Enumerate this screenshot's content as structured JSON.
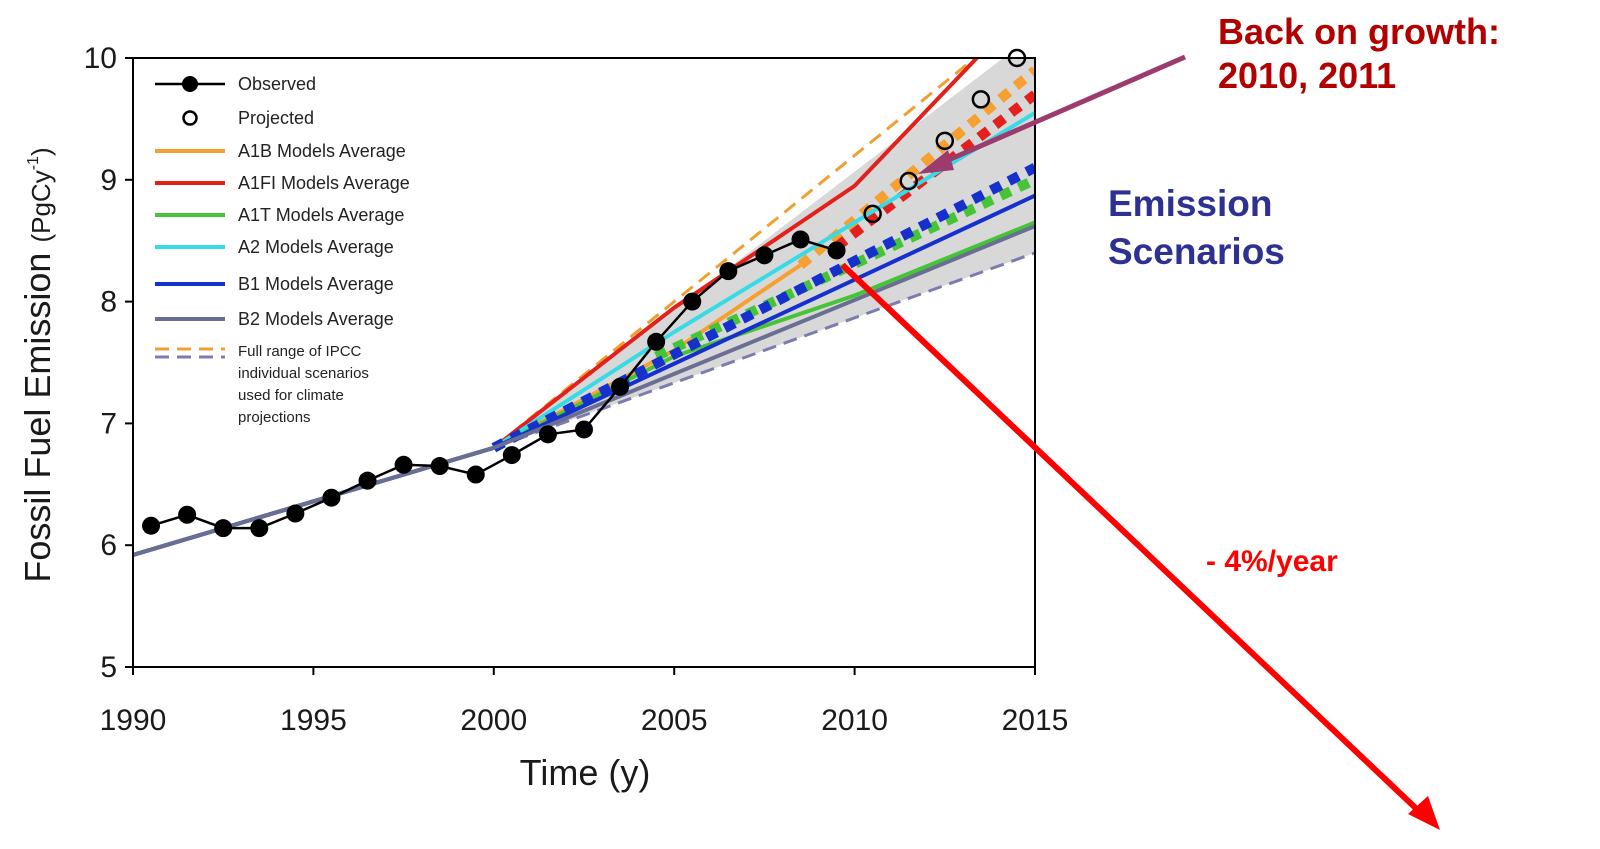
{
  "chart_data": {
    "type": "line",
    "title": "",
    "xlabel": "Time (y)",
    "ylabel_main": "Fossil Fuel Emission",
    "ylabel_unit_pre": "(PgCy",
    "ylabel_unit_sup": "-1",
    "ylabel_unit_post": ")",
    "xlim": [
      1990,
      2015
    ],
    "ylim": [
      5,
      10
    ],
    "xticks": [
      1990,
      1995,
      2000,
      2005,
      2010,
      2015
    ],
    "yticks": [
      5,
      6,
      7,
      8,
      9,
      10
    ],
    "grid": false,
    "legend_position": "top-left",
    "envelope": {
      "color": "#d8d8d8",
      "upper": [
        [
          2000,
          6.8
        ],
        [
          2015,
          10.2
        ]
      ],
      "lower": [
        [
          2000,
          6.8
        ],
        [
          2015,
          8.4
        ]
      ]
    },
    "observed": {
      "name": "Observed",
      "color": "#000000",
      "x": [
        1990.5,
        1991.5,
        1992.5,
        1993.5,
        1994.5,
        1995.5,
        1996.5,
        1997.5,
        1998.5,
        1999.5,
        2000.5,
        2001.5,
        2002.5,
        2003.5,
        2004.5,
        2005.5,
        2006.5,
        2007.5,
        2008.5,
        2009.5
      ],
      "y": [
        6.16,
        6.25,
        6.14,
        6.14,
        6.26,
        6.39,
        6.53,
        6.66,
        6.65,
        6.58,
        6.74,
        6.91,
        6.95,
        7.3,
        7.67,
        8.0,
        8.25,
        8.38,
        8.51,
        8.42
      ]
    },
    "projected": {
      "name": "Projected",
      "color": "#000000",
      "x": [
        2010.5,
        2011.5,
        2012.5,
        2013.5,
        2014.5
      ],
      "y": [
        8.72,
        8.99,
        9.32,
        9.66,
        10.0
      ]
    },
    "series": [
      {
        "name": "A1B Models Average",
        "color": "#f5a030",
        "solid": [
          [
            1990,
            5.92
          ],
          [
            2000,
            6.8
          ],
          [
            2005,
            7.6
          ],
          [
            2008.5,
            8.3
          ]
        ],
        "dotted": [
          [
            2008.5,
            8.3
          ],
          [
            2015,
            9.9
          ]
        ]
      },
      {
        "name": "A1FI Models Average",
        "color": "#e3201b",
        "solid": [
          [
            1990,
            5.92
          ],
          [
            2000,
            6.8
          ],
          [
            2005,
            7.95
          ],
          [
            2010,
            8.95
          ],
          [
            2015,
            10.5
          ]
        ],
        "dotted": [
          [
            2009.5,
            8.45
          ],
          [
            2015,
            9.7
          ]
        ]
      },
      {
        "name": "A1T Models Average",
        "color": "#45c435",
        "solid": [
          [
            1990,
            5.92
          ],
          [
            2000,
            6.8
          ],
          [
            2005,
            7.55
          ],
          [
            2010,
            8.05
          ],
          [
            2015,
            8.65
          ]
        ],
        "dotted": [
          [
            2004.5,
            7.55
          ],
          [
            2015,
            9.0
          ]
        ]
      },
      {
        "name": "A2 Models Average",
        "color": "#37dbe6",
        "solid": [
          [
            1990,
            5.92
          ],
          [
            2000,
            6.8
          ],
          [
            2005,
            7.75
          ],
          [
            2015,
            9.55
          ]
        ],
        "dotted": []
      },
      {
        "name": "B1 Models Average",
        "color": "#1530cc",
        "solid": [
          [
            1990,
            5.92
          ],
          [
            2000,
            6.8
          ],
          [
            2015,
            8.87
          ]
        ],
        "dotted": [
          [
            2000,
            6.8
          ],
          [
            2015,
            9.1
          ]
        ]
      },
      {
        "name": "B2 Models Average",
        "color": "#6b6e93",
        "solid": [
          [
            1990,
            5.92
          ],
          [
            2000,
            6.8
          ],
          [
            2015,
            8.62
          ]
        ],
        "dotted": []
      }
    ],
    "range_series": [
      {
        "name": "Full range upper",
        "color": "#f0a030",
        "points": [
          [
            2000,
            6.8
          ],
          [
            2015,
            10.4
          ]
        ]
      },
      {
        "name": "Full range lower",
        "color": "#7c7cb0",
        "points": [
          [
            2000,
            6.8
          ],
          [
            2015,
            8.4
          ]
        ]
      }
    ],
    "legend": {
      "observed": "Observed",
      "projected": "Projected",
      "a1b": "A1B Models Average",
      "a1fi": "A1FI Models Average",
      "a1t": "A1T Models Average",
      "a2": "A2 Models Average",
      "b1": "B1 Models Average",
      "b2": "B2 Models Average",
      "range_lines": [
        "Full range of IPCC",
        "individual scenarios",
        "used for climate",
        "projections"
      ]
    },
    "annotations": {
      "growth_line1": "Back on growth:",
      "growth_line2": "2010, 2011",
      "scenarios_line1": "Emission",
      "scenarios_line2": "Scenarios",
      "rate": "- 4%/year",
      "growth_color": "#b20000",
      "scenarios_color": "#2e3192",
      "rate_color": "#ff0000",
      "growth_arrow_color": "#9b3b6e"
    },
    "reduction_arrow": {
      "from": [
        2009.5,
        8.3
      ]
    }
  }
}
